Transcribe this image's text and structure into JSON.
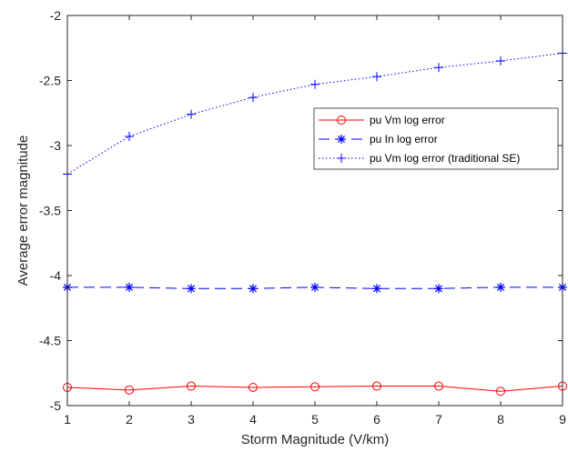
{
  "chart_data": {
    "type": "line",
    "title": "",
    "xlabel": "Storm Magnitude (V/km)",
    "ylabel": "Average error magnitude",
    "xlim": [
      1,
      9
    ],
    "ylim": [
      -5,
      -2
    ],
    "xticks": [
      1,
      2,
      3,
      4,
      5,
      6,
      7,
      8,
      9
    ],
    "yticks": [
      -5,
      -4.5,
      -4,
      -3.5,
      -3,
      -2.5,
      -2
    ],
    "xtick_labels": [
      "1",
      "2",
      "3",
      "4",
      "5",
      "6",
      "7",
      "8",
      "9"
    ],
    "ytick_labels": [
      "-5",
      "-4.5",
      "-4",
      "-3.5",
      "-3",
      "-2.5",
      "-2"
    ],
    "grid": false,
    "legend_position": "upper-right",
    "x": [
      1,
      2,
      3,
      4,
      5,
      6,
      7,
      8,
      9
    ],
    "series": [
      {
        "name": "pu Vm log error",
        "color": "#ff0000",
        "line_style": "solid",
        "marker": "circle",
        "values": [
          -4.86,
          -4.88,
          -4.85,
          -4.86,
          -4.855,
          -4.85,
          -4.85,
          -4.89,
          -4.85
        ]
      },
      {
        "name": "pu In log error",
        "color": "#0000ff",
        "line_style": "dashed",
        "marker": "asterisk",
        "values": [
          -4.09,
          -4.09,
          -4.1,
          -4.1,
          -4.09,
          -4.1,
          -4.1,
          -4.09,
          -4.09
        ]
      },
      {
        "name": "pu Vm log error (traditional SE)",
        "color": "#0000ff",
        "line_style": "dotted",
        "marker": "plus",
        "values": [
          -3.22,
          -2.93,
          -2.76,
          -2.63,
          -2.53,
          -2.47,
          -2.4,
          -2.35,
          -2.29
        ]
      }
    ]
  }
}
